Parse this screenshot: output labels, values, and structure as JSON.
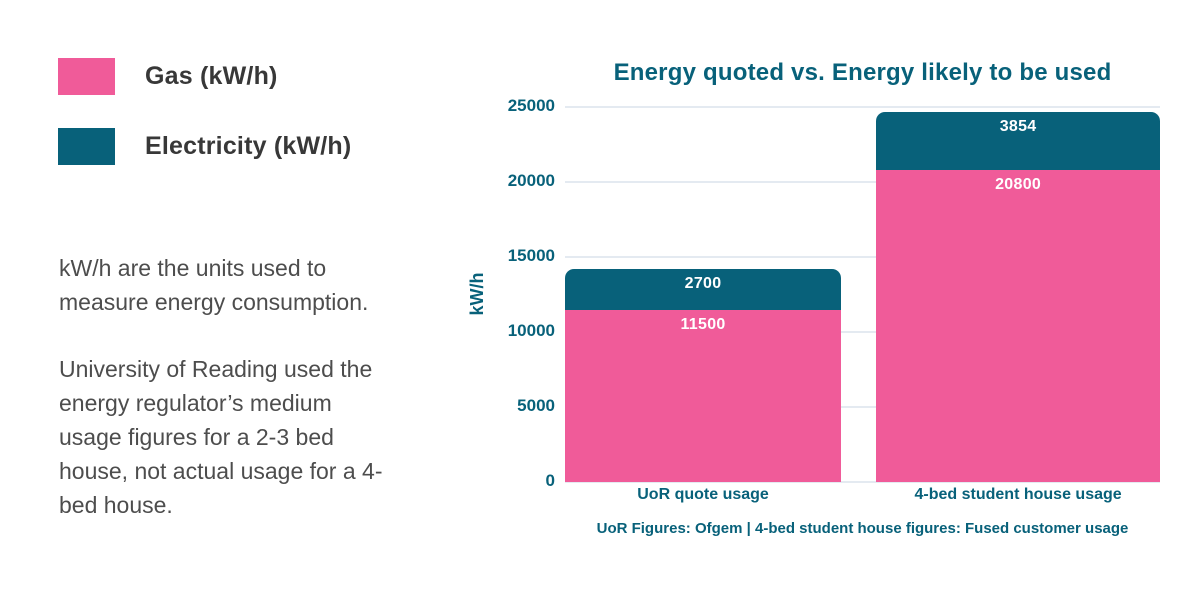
{
  "colors": {
    "gas": "#F05B99",
    "electricity": "#08617A",
    "chart_text": "#08617A",
    "body_text": "#4D4D4D",
    "legend_text": "#383838",
    "gridline": "#E4EAF1",
    "background": "#FFFFFF"
  },
  "legend": {
    "items": [
      {
        "label": "Gas (kW/h)",
        "color": "#F05B99"
      },
      {
        "label": "Electricity (kW/h)",
        "color": "#08617A"
      }
    ]
  },
  "notes": {
    "para1": "kW/h are the units used to measure energy consumption.",
    "para2": "University of Reading used the energy regulator’s medium usage figures for a 2-3 bed house, not actual usage for a 4-bed house."
  },
  "chart_data": {
    "type": "bar",
    "stacked": true,
    "title": "Energy quoted vs. Energy likely to be used",
    "xlabel": "",
    "ylabel": "kW/h",
    "ylim": [
      0,
      25000
    ],
    "yticks": [
      0,
      5000,
      10000,
      15000,
      20000,
      25000
    ],
    "grid": true,
    "legend_position": "outside-left",
    "categories": [
      "UoR quote usage",
      "4-bed student house usage"
    ],
    "series": [
      {
        "name": "Gas (kW/h)",
        "color": "#F05B99",
        "values": [
          11500,
          20800
        ]
      },
      {
        "name": "Electricity (kW/h)",
        "color": "#08617A",
        "values": [
          2700,
          3854
        ]
      }
    ],
    "totals": [
      14200,
      24654
    ],
    "footnote": "UoR Figures: Ofgem | 4-bed student house figures: Fused customer usage"
  }
}
